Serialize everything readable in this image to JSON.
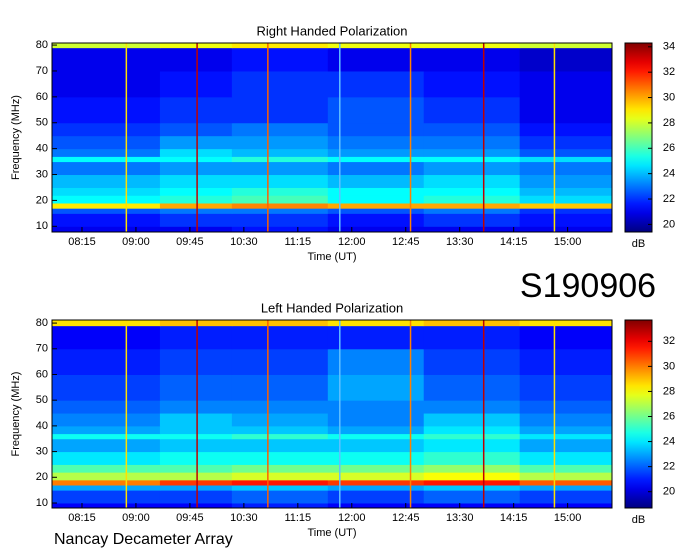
{
  "figure": {
    "event_id": "S190906",
    "footer": "Nancay Decameter Array"
  },
  "chart_data": [
    {
      "type": "spectrogram",
      "title": "Right Handed Polarization",
      "x_label": "Time (UT)",
      "y_label": "Frequency (MHz)",
      "colorbar_label": "dB",
      "colormap": "jet",
      "xlim": [
        470,
        937
      ],
      "ylim": [
        7.8,
        80.8
      ],
      "xticks": [
        {
          "value": 495,
          "label": "08:15"
        },
        {
          "value": 540,
          "label": "09:00"
        },
        {
          "value": 585,
          "label": "09:45"
        },
        {
          "value": 630,
          "label": "10:30"
        },
        {
          "value": 675,
          "label": "11:15"
        },
        {
          "value": 720,
          "label": "12:00"
        },
        {
          "value": 765,
          "label": "12:45"
        },
        {
          "value": 810,
          "label": "13:30"
        },
        {
          "value": 855,
          "label": "14:15"
        },
        {
          "value": 900,
          "label": "15:00"
        }
      ],
      "yticks": [
        10,
        20,
        30,
        40,
        50,
        60,
        70,
        80
      ],
      "clim": [
        19.4,
        34.3
      ],
      "cticks": [
        20,
        22,
        24,
        26,
        28,
        30,
        32,
        34
      ],
      "time_bins": [
        470,
        560,
        620,
        700,
        780,
        860,
        937
      ],
      "freq_bins": [
        7.8,
        10,
        15,
        17,
        19,
        22,
        25,
        30,
        35,
        37,
        40,
        45,
        50,
        60,
        70,
        79,
        80.8
      ],
      "z": [
        [
          21,
          21,
          21.5,
          21,
          21,
          21
        ],
        [
          21.5,
          22,
          22,
          21.5,
          22,
          21.5
        ],
        [
          22.5,
          23,
          23,
          22.5,
          23,
          22
        ],
        [
          29,
          30,
          30.5,
          30,
          30,
          29.5
        ],
        [
          25,
          25.5,
          26,
          25,
          25.5,
          24.5
        ],
        [
          24.5,
          25,
          25.5,
          25,
          25,
          24
        ],
        [
          24,
          24.5,
          24.5,
          24,
          24.5,
          23.5
        ],
        [
          23,
          23.5,
          23.5,
          23,
          23.5,
          23
        ],
        [
          25,
          25,
          25.5,
          25,
          25,
          24.5
        ],
        [
          23,
          24.5,
          24,
          23.5,
          23.5,
          22.5
        ],
        [
          22.5,
          23.5,
          23.5,
          23,
          23,
          22
        ],
        [
          22,
          22.5,
          23,
          22.5,
          22.5,
          21.5
        ],
        [
          21.5,
          22,
          22,
          22.5,
          22,
          21
        ],
        [
          21,
          21.5,
          22,
          22,
          21.5,
          21
        ],
        [
          21,
          21,
          21.5,
          21,
          21,
          20.5
        ],
        [
          28,
          28.5,
          29,
          28.5,
          28.5,
          28
        ]
      ],
      "lines": {
        "times": [
          532,
          591,
          650,
          710,
          769,
          830,
          889
        ],
        "colors": [
          "#ffe000",
          "#c00000",
          "#ff6000",
          "#60c0ff",
          "#ff8000",
          "#c00000",
          "#ffe000"
        ]
      }
    },
    {
      "type": "spectrogram",
      "title": "Left Handed Polarization",
      "x_label": "Time (UT)",
      "y_label": "Frequency (MHz)",
      "colorbar_label": "dB",
      "colormap": "jet",
      "xlim": [
        470,
        937
      ],
      "ylim": [
        8.05,
        81.2
      ],
      "xticks": [
        {
          "value": 495,
          "label": "08:15"
        },
        {
          "value": 540,
          "label": "09:00"
        },
        {
          "value": 585,
          "label": "09:45"
        },
        {
          "value": 630,
          "label": "10:30"
        },
        {
          "value": 675,
          "label": "11:15"
        },
        {
          "value": 720,
          "label": "12:00"
        },
        {
          "value": 765,
          "label": "12:45"
        },
        {
          "value": 810,
          "label": "13:30"
        },
        {
          "value": 855,
          "label": "14:15"
        },
        {
          "value": 900,
          "label": "15:00"
        }
      ],
      "yticks": [
        10,
        20,
        30,
        40,
        50,
        60,
        70,
        80
      ],
      "clim": [
        18.7,
        33.7
      ],
      "cticks": [
        20,
        22,
        24,
        26,
        28,
        30,
        32
      ],
      "time_bins": [
        470,
        560,
        620,
        700,
        780,
        860,
        937
      ],
      "freq_bins": [
        8.05,
        10,
        15,
        17,
        19,
        22,
        25,
        30,
        35,
        37,
        40,
        45,
        50,
        60,
        70,
        79,
        81.2
      ],
      "z": [
        [
          20.5,
          20.5,
          21,
          20.5,
          20.5,
          20.5
        ],
        [
          21.5,
          21.5,
          22,
          21.5,
          22,
          21.5
        ],
        [
          23,
          23,
          23.5,
          23,
          23.5,
          23
        ],
        [
          30,
          31,
          31.5,
          31,
          31.5,
          30.5
        ],
        [
          27,
          27,
          27.5,
          27.5,
          28,
          27
        ],
        [
          25.5,
          25.5,
          26,
          26,
          26.5,
          25.5
        ],
        [
          24,
          24.5,
          24.5,
          24.5,
          25,
          24
        ],
        [
          23,
          23.5,
          23.5,
          23.5,
          24,
          23
        ],
        [
          24.5,
          24.5,
          25,
          24.5,
          25,
          24
        ],
        [
          23,
          23.5,
          23.5,
          23,
          24,
          23
        ],
        [
          22.5,
          23.5,
          23,
          22.5,
          23.5,
          22.5
        ],
        [
          22,
          22.5,
          22.5,
          22.5,
          22.5,
          22
        ],
        [
          21.5,
          22,
          22,
          23,
          22,
          21.5
        ],
        [
          21,
          21.5,
          21.5,
          22.5,
          21.5,
          21
        ],
        [
          20.5,
          21,
          21,
          21,
          21,
          20.5
        ],
        [
          28.5,
          29,
          29,
          28.5,
          29,
          28.5
        ]
      ],
      "lines": {
        "times": [
          532,
          591,
          650,
          710,
          769,
          830,
          889
        ],
        "colors": [
          "#ffe000",
          "#c00000",
          "#ff6000",
          "#60c0ff",
          "#ff8000",
          "#c00000",
          "#ffe000"
        ]
      }
    }
  ]
}
